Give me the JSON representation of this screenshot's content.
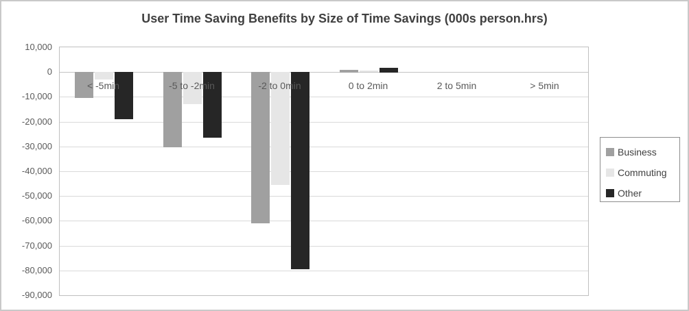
{
  "chart_data": {
    "type": "bar",
    "title": "User Time Saving Benefits by Size of Time Savings (000s person.hrs)",
    "categories": [
      "< -5min",
      "-5 to -2min",
      "-2 to 0min",
      "0 to 2min",
      "2 to 5min",
      "> 5min"
    ],
    "series": [
      {
        "name": "Business",
        "color": "#a0a0a0",
        "values": [
          -10500,
          -30500,
          -61000,
          1000,
          0,
          0
        ]
      },
      {
        "name": "Commuting",
        "color": "#e6e6e6",
        "values": [
          -3000,
          -13000,
          -45500,
          500,
          0,
          0
        ]
      },
      {
        "name": "Other",
        "color": "#262626",
        "values": [
          -19000,
          -26500,
          -79500,
          1800,
          0,
          0
        ]
      }
    ],
    "xlabel": "",
    "ylabel": "",
    "ylim": [
      -90000,
      10000
    ],
    "ytick_step": 10000,
    "ytick_labels": [
      "10,000",
      "0",
      "-10,000",
      "-20,000",
      "-30,000",
      "-40,000",
      "-50,000",
      "-60,000",
      "-70,000",
      "-80,000",
      "-90,000"
    ],
    "grid": "horizontal",
    "legend_position": "right",
    "legend_entries": [
      "Business",
      "Commuting",
      "Other"
    ]
  },
  "colors": {
    "title_text": "#404040",
    "axis_text": "#595959",
    "gridline": "#d9d9d9",
    "zero_line": "#c2c2c2",
    "plot_border": "#bfbfbf",
    "legend_border": "#8c8c8c",
    "frame_border": "#c9c9c9"
  }
}
